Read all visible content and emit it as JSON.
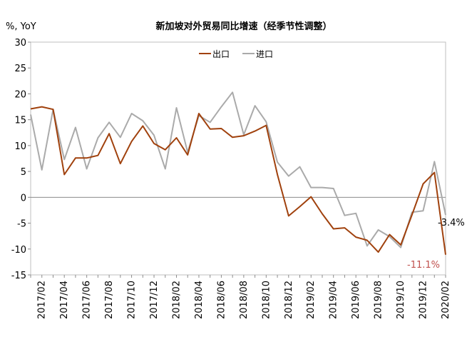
{
  "chart_data": {
    "type": "line",
    "title": "新加坡对外贸易同比增速（经季节性调整）",
    "unit_label": "%, YoY",
    "ylim": [
      -15,
      30
    ],
    "yticks": [
      -15,
      -10,
      -5,
      0,
      5,
      10,
      15,
      20,
      25,
      30
    ],
    "grid": false,
    "legend_position": "top-center",
    "x": [
      "2017/01",
      "2017/02",
      "2017/03",
      "2017/04",
      "2017/05",
      "2017/06",
      "2017/07",
      "2017/08",
      "2017/09",
      "2017/10",
      "2017/11",
      "2017/12",
      "2018/01",
      "2018/02",
      "2018/03",
      "2018/04",
      "2018/05",
      "2018/06",
      "2018/07",
      "2018/08",
      "2018/09",
      "2018/10",
      "2018/11",
      "2018/12",
      "2019/01",
      "2019/02",
      "2019/03",
      "2019/04",
      "2019/05",
      "2019/06",
      "2019/07",
      "2019/08",
      "2019/09",
      "2019/10",
      "2019/11",
      "2019/12",
      "2020/01",
      "2020/02"
    ],
    "xtick_labels": [
      "2017/02",
      "2017/04",
      "2017/06",
      "2017/08",
      "2017/10",
      "2017/12",
      "2018/02",
      "2018/04",
      "2018/06",
      "2018/08",
      "2018/10",
      "2018/12",
      "2019/02",
      "2019/04",
      "2019/06",
      "2019/08",
      "2019/10",
      "2019/12",
      "2020/02"
    ],
    "series": [
      {
        "name": "出口",
        "color": "#a0410d",
        "values": [
          17.1,
          17.5,
          17.0,
          4.4,
          7.6,
          7.6,
          8.1,
          12.3,
          6.5,
          10.8,
          13.8,
          10.4,
          9.2,
          11.5,
          8.2,
          16.2,
          13.2,
          13.3,
          11.6,
          11.9,
          12.8,
          13.9,
          4.4,
          -3.6,
          -1.8,
          0.1,
          -3.2,
          -6.1,
          -5.9,
          -7.7,
          -8.3,
          -10.6,
          -7.2,
          -9.2,
          -3.4,
          2.6,
          4.8,
          -11.1
        ]
      },
      {
        "name": "进口",
        "color": "#aaaaaa",
        "values": [
          16.0,
          5.3,
          17.0,
          7.3,
          13.5,
          5.5,
          11.5,
          14.5,
          11.6,
          16.2,
          14.8,
          12.0,
          5.5,
          17.3,
          8.7,
          15.8,
          14.5,
          17.5,
          20.3,
          12.1,
          17.7,
          14.6,
          6.8,
          4.1,
          5.9,
          1.9,
          1.9,
          1.7,
          -3.5,
          -3.1,
          -9.4,
          -6.3,
          -7.6,
          -9.7,
          -2.9,
          -2.6,
          6.9,
          -3.4
        ]
      }
    ],
    "end_labels": [
      {
        "series": "进口",
        "text": "-3.4%",
        "color": "#000000"
      },
      {
        "series": "出口",
        "text": "-11.1%",
        "color": "#c0504d"
      }
    ]
  }
}
